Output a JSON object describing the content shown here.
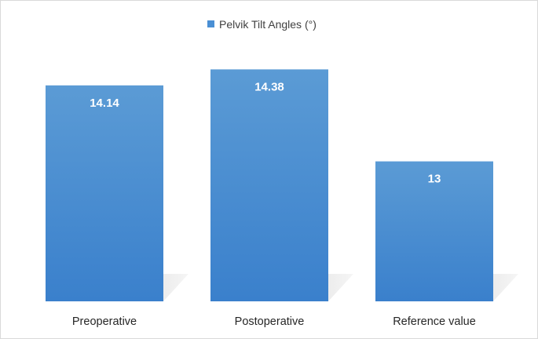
{
  "chart_data": {
    "type": "bar",
    "categories": [
      "Preoperative",
      "Postoperative",
      "Reference value"
    ],
    "series": [
      {
        "name": "Pelvik Tilt Angles (°)",
        "values": [
          14.14,
          14.38,
          13
        ]
      }
    ],
    "data_labels": [
      "14.14",
      "14.38",
      "13"
    ],
    "legend_position": "top",
    "grid": false,
    "colors": {
      "bar_top": "#5b9bd5",
      "bar_bottom": "#3a80cc",
      "shadow": "#bfbfbf"
    }
  }
}
